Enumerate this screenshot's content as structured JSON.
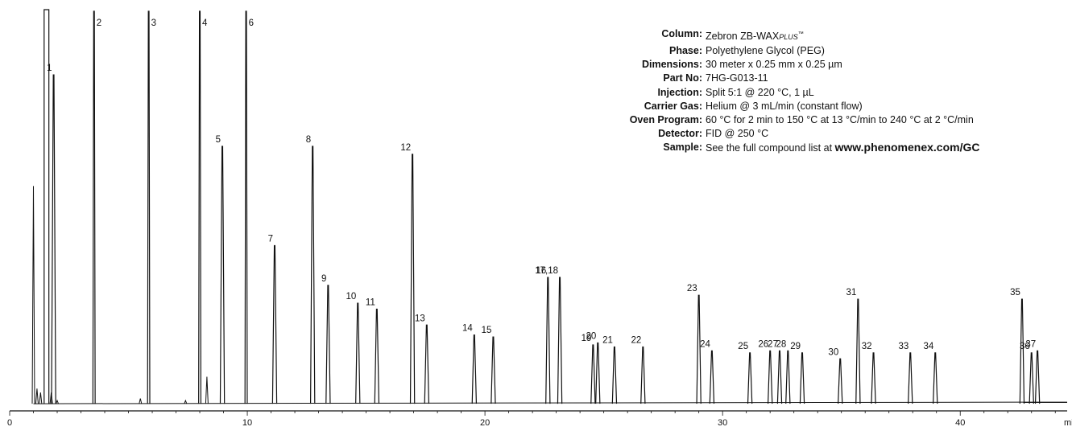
{
  "chart_data": {
    "type": "line",
    "title": "",
    "xlabel": "min",
    "ylabel": "",
    "xlim": [
      0,
      44.5
    ],
    "ylim": [
      0,
      100
    ],
    "x_ticks": [
      0,
      10,
      20,
      30,
      40
    ],
    "grid": false,
    "line_color": "#111111",
    "baseline": 1.2,
    "solvent_front": [
      {
        "x": 1.0,
        "y": 56
      },
      {
        "x": 1.15,
        "y": 5
      },
      {
        "x": 1.3,
        "y": 4
      }
    ],
    "solvent_peak": {
      "x_start": 1.45,
      "x_end": 1.65,
      "y": 100
    },
    "peaks": [
      {
        "label": "1",
        "x": 1.85,
        "y": 84
      },
      {
        "label": "2",
        "x": 3.55,
        "y": 100
      },
      {
        "label": "3",
        "x": 5.85,
        "y": 100
      },
      {
        "label": "4",
        "x": 8.0,
        "y": 100
      },
      {
        "label": "5",
        "x": 8.95,
        "y": 66
      },
      {
        "label": "6",
        "x": 9.95,
        "y": 100
      },
      {
        "label": "7",
        "x": 11.15,
        "y": 41
      },
      {
        "label": "8",
        "x": 12.75,
        "y": 66
      },
      {
        "label": "9",
        "x": 13.4,
        "y": 31
      },
      {
        "label": "10",
        "x": 14.65,
        "y": 26.5
      },
      {
        "label": "11",
        "x": 15.45,
        "y": 25
      },
      {
        "label": "12",
        "x": 16.95,
        "y": 64
      },
      {
        "label": "13",
        "x": 17.55,
        "y": 21
      },
      {
        "label": "14",
        "x": 19.55,
        "y": 18.5
      },
      {
        "label": "15",
        "x": 20.35,
        "y": 18
      },
      {
        "label": "16",
        "x": 22.65,
        "y": 33
      },
      {
        "label": "17,18",
        "x": 23.15,
        "y": 33
      },
      {
        "label": "19",
        "x": 24.55,
        "y": 16
      },
      {
        "label": "20",
        "x": 24.75,
        "y": 16.5
      },
      {
        "label": "21",
        "x": 25.45,
        "y": 15.5
      },
      {
        "label": "22",
        "x": 26.65,
        "y": 15.5
      },
      {
        "label": "23",
        "x": 29.0,
        "y": 28.5
      },
      {
        "label": "24",
        "x": 29.55,
        "y": 14.5
      },
      {
        "label": "25",
        "x": 31.15,
        "y": 14
      },
      {
        "label": "26",
        "x": 32.0,
        "y": 14.5
      },
      {
        "label": "27",
        "x": 32.4,
        "y": 14.5
      },
      {
        "label": "28",
        "x": 32.75,
        "y": 14.5
      },
      {
        "label": "29",
        "x": 33.35,
        "y": 14
      },
      {
        "label": "30",
        "x": 34.95,
        "y": 12.5
      },
      {
        "label": "31",
        "x": 35.7,
        "y": 27.5
      },
      {
        "label": "32",
        "x": 36.35,
        "y": 14
      },
      {
        "label": "33",
        "x": 37.9,
        "y": 14
      },
      {
        "label": "34",
        "x": 38.95,
        "y": 14
      },
      {
        "label": "35",
        "x": 42.6,
        "y": 27.5
      },
      {
        "label": "36",
        "x": 43.0,
        "y": 14
      },
      {
        "label": "37",
        "x": 43.25,
        "y": 14.5
      }
    ],
    "minor_peaks": [
      {
        "x": 1.75,
        "y": 4
      },
      {
        "x": 2.0,
        "y": 2
      },
      {
        "x": 5.5,
        "y": 2.5
      },
      {
        "x": 7.4,
        "y": 2
      },
      {
        "x": 8.3,
        "y": 8
      }
    ]
  },
  "info": {
    "rows": [
      {
        "label": "Column:",
        "value": "Zebron ZB-WAX",
        "plus": "PLUS",
        "tm": "™"
      },
      {
        "label": "Phase:",
        "value": "Polyethylene Glycol (PEG)"
      },
      {
        "label": "Dimensions:",
        "value": "30 meter x 0.25 mm x 0.25 µm"
      },
      {
        "label": "Part No:",
        "value": "7HG-G013-11"
      },
      {
        "label": "Injection:",
        "value": "Split 5:1 @ 220 °C, 1 µL"
      },
      {
        "label": "Carrier Gas:",
        "value": "Helium @ 3 mL/min (constant flow)"
      },
      {
        "label": "Oven Program:",
        "value": "60 °C for 2 min to 150 °C at 13 °C/min to 240 °C at 2 °C/min"
      },
      {
        "label": "Detector:",
        "value": "FID @ 250 °C"
      },
      {
        "label": "Sample:",
        "value": "See the full compound list at ",
        "link": "www.phenomenex.com/GC"
      }
    ]
  }
}
